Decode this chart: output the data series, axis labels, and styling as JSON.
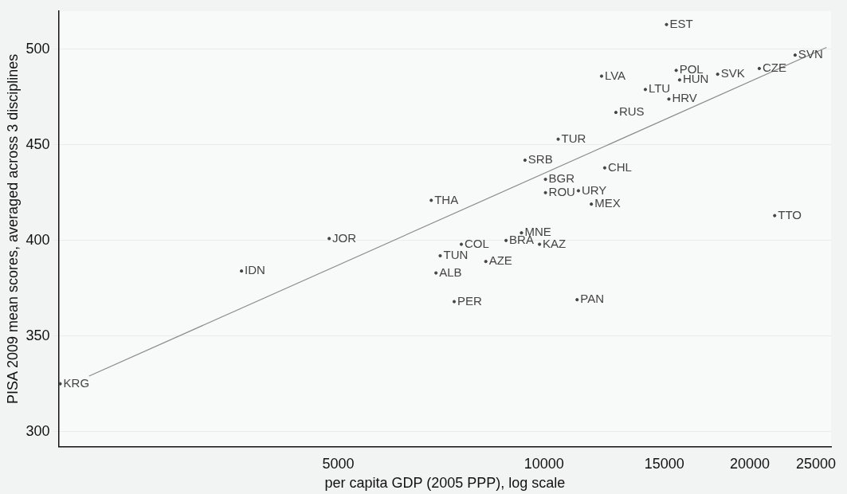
{
  "chart_data": {
    "type": "scatter",
    "xlabel": "per capita GDP (2005 PPP), log scale",
    "ylabel": "PISA 2009 mean scores, averaged across 3 disciplines",
    "log": "x",
    "grid": "y",
    "xlim": [
      1950,
      26300
    ],
    "xticks": [
      5000,
      10000,
      15000,
      20000,
      25000
    ],
    "ylim": [
      292,
      520
    ],
    "yticks": [
      300,
      350,
      400,
      450,
      500
    ],
    "series": [
      {
        "type": "scatter",
        "color": "#444444",
        "marker": "circle",
        "x": [
          1960,
          3610,
          4850,
          6840,
          7050,
          6950,
          7570,
          8220,
          7390,
          8800,
          9270,
          9850,
          9380,
          10050,
          10050,
          11230,
          11730,
          12270,
          10490,
          11180,
          12740,
          12140,
          14070,
          15230,
          15110,
          15610,
          15790,
          17950,
          20650,
          23300,
          21750
        ],
        "values": [
          325,
          384,
          401,
          421,
          392,
          383,
          398,
          389,
          368,
          400,
          404,
          398,
          442,
          432,
          425,
          426,
          419,
          438,
          453,
          369,
          467,
          486,
          479,
          474,
          513,
          489,
          484,
          487,
          490,
          497,
          413
        ],
        "value_labels": [
          "KRG",
          "IDN",
          "JOR",
          "THA",
          "TUN",
          "ALB",
          "COL",
          "AZE",
          "PER",
          "BRA",
          "MNE",
          "KAZ",
          "SRB",
          "BGR",
          "ROU",
          "URY",
          "MEX",
          "CHL",
          "TUR",
          "PAN",
          "RUS",
          "LVA",
          "LTU",
          "HRV",
          "EST",
          "POL",
          "HUN",
          "SVK",
          "CZE",
          "SVN",
          "TTO"
        ]
      },
      {
        "type": "line",
        "color": "#8c8c8c",
        "marker": "none",
        "x": [
          2160,
          25900
        ],
        "values": [
          329,
          501
        ]
      }
    ]
  }
}
